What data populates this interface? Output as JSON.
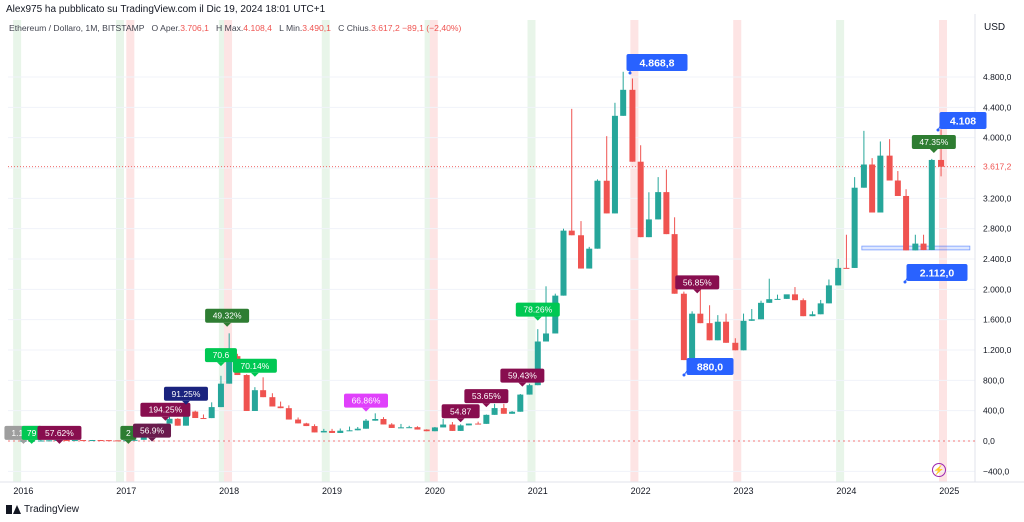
{
  "header": {
    "published_by": "Alex975 ha pubblicato su TradingView.com il Dic 19, 2024 18:01 UTC+1",
    "symbol": "Ethereum / Dollaro, 1M, BITSTAMP",
    "open_label": "O",
    "open_text": "Aper.",
    "open_value": "3.706,1",
    "high_label": "H",
    "high_text": "Max.",
    "high_value": "4.108,4",
    "low_label": "L",
    "low_text": "Min.",
    "low_value": "3.490,1",
    "close_label": "C",
    "close_text": "Chius.",
    "close_value": "3.617,2",
    "change_value": "−89,1",
    "change_percent": "(−2,40%)"
  },
  "currency": "USD",
  "footer": {
    "brand": "TradingView"
  },
  "icons": {
    "logo": "tradingview-logo-icon",
    "lightning": "lightning-icon"
  },
  "colors": {
    "up": "#26a69a",
    "down": "#ef5350",
    "green_band": "#e8f5e9",
    "red_band": "#fde4e4",
    "callout_blue": "#2962ff",
    "price_line": "#ef5350"
  },
  "chart_data": {
    "type": "candlestick",
    "title": "Ethereum / Dollaro, 1M, BITSTAMP",
    "xlabel": "",
    "ylabel": "",
    "y_ticks": [
      {
        "value": 4800,
        "label": "4.800,0"
      },
      {
        "value": 4400,
        "label": "4.400,0"
      },
      {
        "value": 4000,
        "label": "4.000,0"
      },
      {
        "value": 3600,
        "label": "3.600,0"
      },
      {
        "value": 3200,
        "label": "3.200,0"
      },
      {
        "value": 2800,
        "label": "2.800,0"
      },
      {
        "value": 2400,
        "label": "2.400,0"
      },
      {
        "value": 2000,
        "label": "2.000,0"
      },
      {
        "value": 1600,
        "label": "1.600,0"
      },
      {
        "value": 1200,
        "label": "1.200,0"
      },
      {
        "value": 800,
        "label": "800,0"
      },
      {
        "value": 400,
        "label": "400,0"
      },
      {
        "value": 0,
        "label": "0,0"
      },
      {
        "value": -400,
        "label": "−400,0"
      }
    ],
    "x_ticks": [
      {
        "date": 2016.0,
        "label": "2016"
      },
      {
        "date": 2017.0,
        "label": "2017"
      },
      {
        "date": 2018.0,
        "label": "2018"
      },
      {
        "date": 2019.0,
        "label": "2019"
      },
      {
        "date": 2020.0,
        "label": "2020"
      },
      {
        "date": 2021.0,
        "label": "2021"
      },
      {
        "date": 2022.0,
        "label": "2022"
      },
      {
        "date": 2023.0,
        "label": "2023"
      },
      {
        "date": 2024.0,
        "label": "2024"
      },
      {
        "date": 2025.0,
        "label": "2025"
      }
    ],
    "ylim": [
      -400,
      5000
    ],
    "xlim": [
      2015.85,
      2025.25
    ],
    "current_price": {
      "value": 3617.2,
      "label": "3.617,2"
    },
    "green_bands": [
      2015.9,
      2016.9,
      2017.9,
      2018.9,
      2019.9,
      2020.9,
      2023.9
    ],
    "red_bands": [
      2017.0,
      2017.95,
      2019.95,
      2021.9,
      2022.9,
      2024.9
    ],
    "support_zone": {
      "from": 2024.15,
      "to": 2025.2,
      "low": 2520,
      "high": 2570
    },
    "candles": [
      [
        2016.0,
        0.9,
        0.8,
        0.9,
        1.0
      ],
      [
        2016.08,
        0.9,
        0.9,
        1.1,
        1.3
      ],
      [
        2016.17,
        6.5,
        1.1,
        6.5,
        14.0
      ],
      [
        2016.25,
        8.7,
        6.5,
        8.7,
        9.8
      ],
      [
        2016.33,
        14.0,
        8.7,
        14.0,
        15.0
      ],
      [
        2016.42,
        12.0,
        14.0,
        12.0,
        21.0
      ],
      [
        2016.5,
        12.6,
        12.0,
        12.6,
        13.0
      ],
      [
        2016.58,
        11.0,
        12.6,
        11.0,
        13.0
      ],
      [
        2016.67,
        13.0,
        11.0,
        13.0,
        13.5
      ],
      [
        2016.75,
        11.5,
        13.0,
        11.5,
        13.5
      ],
      [
        2016.83,
        8.5,
        11.5,
        8.5,
        12.0
      ],
      [
        2016.92,
        8.0,
        8.5,
        8.0,
        9.0
      ],
      [
        2017.0,
        10.8,
        8.0,
        10.8,
        11.0
      ],
      [
        2017.08,
        15.7,
        10.8,
        15.7,
        16.0
      ],
      [
        2017.17,
        50.0,
        15.7,
        50.0,
        55.0
      ],
      [
        2017.25,
        79.0,
        50.0,
        79.0,
        80.0
      ],
      [
        2017.33,
        230.0,
        79.0,
        230.0,
        231.0
      ],
      [
        2017.42,
        293.0,
        230.0,
        293.0,
        415.0
      ],
      [
        2017.5,
        202.0,
        293.0,
        202.0,
        300.0
      ],
      [
        2017.58,
        388.0,
        202.0,
        388.0,
        390.0
      ],
      [
        2017.67,
        303.0,
        388.0,
        303.0,
        400.0
      ],
      [
        2017.75,
        302.0,
        303.0,
        302.0,
        350.0
      ],
      [
        2017.83,
        447.0,
        302.0,
        447.0,
        510.0
      ],
      [
        2017.92,
        756.0,
        447.0,
        756.0,
        860.0
      ],
      [
        2018.0,
        1119.0,
        756.0,
        1119.0,
        1420.0
      ],
      [
        2018.08,
        870.0,
        1119.0,
        870.0,
        1150.0
      ],
      [
        2018.17,
        396.0,
        870.0,
        396.0,
        880.0
      ],
      [
        2018.25,
        670.0,
        396.0,
        670.0,
        710.0
      ],
      [
        2018.33,
        578.0,
        670.0,
        578.0,
        840.0
      ],
      [
        2018.42,
        455.0,
        578.0,
        455.0,
        630.0
      ],
      [
        2018.5,
        433.0,
        455.0,
        433.0,
        520.0
      ],
      [
        2018.58,
        283.0,
        433.0,
        283.0,
        470.0
      ],
      [
        2018.67,
        232.0,
        283.0,
        232.0,
        310.0
      ],
      [
        2018.75,
        197.0,
        232.0,
        197.0,
        240.0
      ],
      [
        2018.83,
        113.0,
        197.0,
        113.0,
        220.0
      ],
      [
        2018.92,
        133.0,
        113.0,
        133.0,
        160.0
      ],
      [
        2019.0,
        106.0,
        133.0,
        106.0,
        160.0
      ],
      [
        2019.08,
        136.0,
        106.0,
        136.0,
        165.0
      ],
      [
        2019.17,
        141.0,
        136.0,
        141.0,
        190.0
      ],
      [
        2019.25,
        162.0,
        141.0,
        162.0,
        185.0
      ],
      [
        2019.33,
        268.0,
        162.0,
        268.0,
        290.0
      ],
      [
        2019.42,
        290.0,
        268.0,
        290.0,
        365.0
      ],
      [
        2019.5,
        218.0,
        290.0,
        218.0,
        315.0
      ],
      [
        2019.58,
        172.0,
        218.0,
        172.0,
        235.0
      ],
      [
        2019.67,
        180.0,
        172.0,
        180.0,
        225.0
      ],
      [
        2019.75,
        182.0,
        180.0,
        182.0,
        200.0
      ],
      [
        2019.83,
        151.0,
        182.0,
        151.0,
        195.0
      ],
      [
        2019.92,
        129.0,
        151.0,
        129.0,
        155.0
      ],
      [
        2020.0,
        179.0,
        129.0,
        179.0,
        185.0
      ],
      [
        2020.08,
        217.0,
        179.0,
        217.0,
        290.0
      ],
      [
        2020.17,
        133.0,
        217.0,
        133.0,
        250.0
      ],
      [
        2020.25,
        206.0,
        133.0,
        206.0,
        220.0
      ],
      [
        2020.33,
        230.0,
        206.0,
        230.0,
        230.0
      ],
      [
        2020.42,
        226.0,
        230.0,
        226.0,
        255.0
      ],
      [
        2020.5,
        345.0,
        226.0,
        345.0,
        350.0
      ],
      [
        2020.58,
        434.0,
        345.0,
        434.0,
        490.0
      ],
      [
        2020.67,
        359.0,
        434.0,
        359.0,
        490.0
      ],
      [
        2020.75,
        386.0,
        359.0,
        386.0,
        395.0
      ],
      [
        2020.83,
        612.0,
        386.0,
        612.0,
        620.0
      ],
      [
        2020.92,
        736.0,
        612.0,
        736.0,
        755.0
      ],
      [
        2021.0,
        1312.0,
        736.0,
        1312.0,
        1475.0
      ],
      [
        2021.08,
        1418.0,
        1312.0,
        1418.0,
        2040.0
      ],
      [
        2021.17,
        1917.0,
        1418.0,
        1917.0,
        1943.0
      ],
      [
        2021.25,
        2774.0,
        1917.0,
        2774.0,
        2800.0
      ],
      [
        2021.33,
        2713.0,
        2774.0,
        2713.0,
        4380.0
      ],
      [
        2021.42,
        2274.0,
        2713.0,
        2274.0,
        2900.0
      ],
      [
        2021.5,
        2536.0,
        2274.0,
        2536.0,
        2560.0
      ],
      [
        2021.58,
        3432.0,
        2536.0,
        3432.0,
        3450.0
      ],
      [
        2021.67,
        3001.0,
        3432.0,
        3001.0,
        4020.0
      ],
      [
        2021.75,
        4288.0,
        3001.0,
        4288.0,
        4460.0
      ],
      [
        2021.83,
        4631.0,
        4288.0,
        4631.0,
        4869.0
      ],
      [
        2021.92,
        3683.0,
        4631.0,
        3683.0,
        4780.0
      ],
      [
        2022.0,
        2688.0,
        3683.0,
        2688.0,
        3900.0
      ],
      [
        2022.08,
        2922.0,
        2688.0,
        2922.0,
        3280.0
      ],
      [
        2022.17,
        3282.0,
        2922.0,
        3282.0,
        3480.0
      ],
      [
        2022.25,
        2728.0,
        3282.0,
        2728.0,
        3580.0
      ],
      [
        2022.33,
        1942.0,
        2728.0,
        1942.0,
        2950.0
      ],
      [
        2022.42,
        1067.0,
        1942.0,
        1067.0,
        1970.0
      ],
      [
        2022.5,
        1679.0,
        1067.0,
        1679.0,
        1710.0
      ],
      [
        2022.58,
        1554.0,
        1679.0,
        1554.0,
        2030.0
      ],
      [
        2022.67,
        1328.0,
        1554.0,
        1328.0,
        1790.0
      ],
      [
        2022.75,
        1573.0,
        1328.0,
        1573.0,
        1660.0
      ],
      [
        2022.83,
        1295.0,
        1573.0,
        1295.0,
        1680.0
      ],
      [
        2022.92,
        1196.0,
        1295.0,
        1196.0,
        1355.0
      ],
      [
        2023.0,
        1585.0,
        1196.0,
        1585.0,
        1680.0
      ],
      [
        2023.08,
        1605.0,
        1585.0,
        1605.0,
        1740.0
      ],
      [
        2023.17,
        1822.0,
        1605.0,
        1822.0,
        1850.0
      ],
      [
        2023.25,
        1870.0,
        1822.0,
        1870.0,
        2140.0
      ],
      [
        2023.33,
        1874.0,
        1870.0,
        1874.0,
        1930.0
      ],
      [
        2023.42,
        1934.0,
        1874.0,
        1934.0,
        1930.0
      ],
      [
        2023.5,
        1857.0,
        1934.0,
        1857.0,
        2030.0
      ],
      [
        2023.58,
        1646.0,
        1857.0,
        1646.0,
        1880.0
      ],
      [
        2023.67,
        1671.0,
        1646.0,
        1671.0,
        1710.0
      ],
      [
        2023.75,
        1815.0,
        1671.0,
        1815.0,
        1860.0
      ],
      [
        2023.83,
        2052.0,
        1815.0,
        2052.0,
        2130.0
      ],
      [
        2023.92,
        2283.0,
        2052.0,
        2283.0,
        2400.0
      ],
      [
        2024.0,
        2282.0,
        2283.0,
        2282.0,
        2720.0
      ],
      [
        2024.08,
        3340.0,
        2282.0,
        3340.0,
        3480.0
      ],
      [
        2024.17,
        3646.0,
        3340.0,
        3646.0,
        4090.0
      ],
      [
        2024.25,
        3013.0,
        3646.0,
        3013.0,
        3730.0
      ],
      [
        2024.33,
        3763.0,
        3013.0,
        3763.0,
        3950.0
      ],
      [
        2024.42,
        3435.0,
        3763.0,
        3435.0,
        3980.0
      ],
      [
        2024.5,
        3231.0,
        3435.0,
        3231.0,
        3560.0
      ],
      [
        2024.58,
        2514.0,
        3231.0,
        2514.0,
        3320.0
      ],
      [
        2024.67,
        2603.0,
        2514.0,
        2603.0,
        2720.0
      ],
      [
        2024.75,
        2518.0,
        2603.0,
        2518.0,
        2720.0
      ],
      [
        2024.83,
        3706.0,
        2518.0,
        3706.0,
        3720.0
      ],
      [
        2024.92,
        3617.2,
        3706.1,
        3490.1,
        4108.4
      ]
    ],
    "percent_labels": [
      {
        "label": "1.18%",
        "date": 2016.0,
        "value": 15,
        "color": "#9e9e9e"
      },
      {
        "label": "79",
        "date": 2016.08,
        "value": 15,
        "color": "#00c853"
      },
      {
        "label": "57.62%",
        "date": 2016.35,
        "value": 15,
        "color": "#880e4f"
      },
      {
        "label": "2",
        "date": 2017.02,
        "value": 15,
        "color": "#2e7d32"
      },
      {
        "label": "56.9%",
        "date": 2017.25,
        "value": 45,
        "color": "#6a1b4d"
      },
      {
        "label": "194.25%",
        "date": 2017.38,
        "value": 320,
        "color": "#880e4f"
      },
      {
        "label": "91.25%",
        "date": 2017.58,
        "value": 530,
        "color": "#1a237e"
      },
      {
        "label": "70.6",
        "date": 2017.92,
        "value": 1040,
        "color": "#00c853"
      },
      {
        "label": "49.32%",
        "date": 2017.98,
        "value": 1560,
        "color": "#2e7d32"
      },
      {
        "label": "70.14%",
        "date": 2018.25,
        "value": 900,
        "color": "#00c853"
      },
      {
        "label": "66.86%",
        "date": 2019.33,
        "value": 440,
        "color": "#e040fb"
      },
      {
        "label": "54.87",
        "date": 2020.25,
        "value": 300,
        "color": "#880e4f"
      },
      {
        "label": "53.65%",
        "date": 2020.5,
        "value": 500,
        "color": "#880e4f"
      },
      {
        "label": "59.43%",
        "date": 2020.85,
        "value": 770,
        "color": "#880e4f"
      },
      {
        "label": "78.26%",
        "date": 2021.0,
        "value": 1640,
        "color": "#00c853"
      },
      {
        "label": "56.85%",
        "date": 2022.55,
        "value": 2000,
        "color": "#880e4f"
      },
      {
        "label": "47.35%",
        "date": 2024.85,
        "value": 3850,
        "color": "#2e7d32"
      }
    ],
    "callouts": [
      {
        "label": "4.868,8",
        "date": 2021.86,
        "value": 4868.8
      },
      {
        "label": "880,0",
        "date": 2022.45,
        "value": 880
      },
      {
        "label": "2.112,0",
        "date": 2024.6,
        "value": 2112
      },
      {
        "label": "4.108",
        "date": 2024.95,
        "value": 4108.4
      }
    ]
  }
}
